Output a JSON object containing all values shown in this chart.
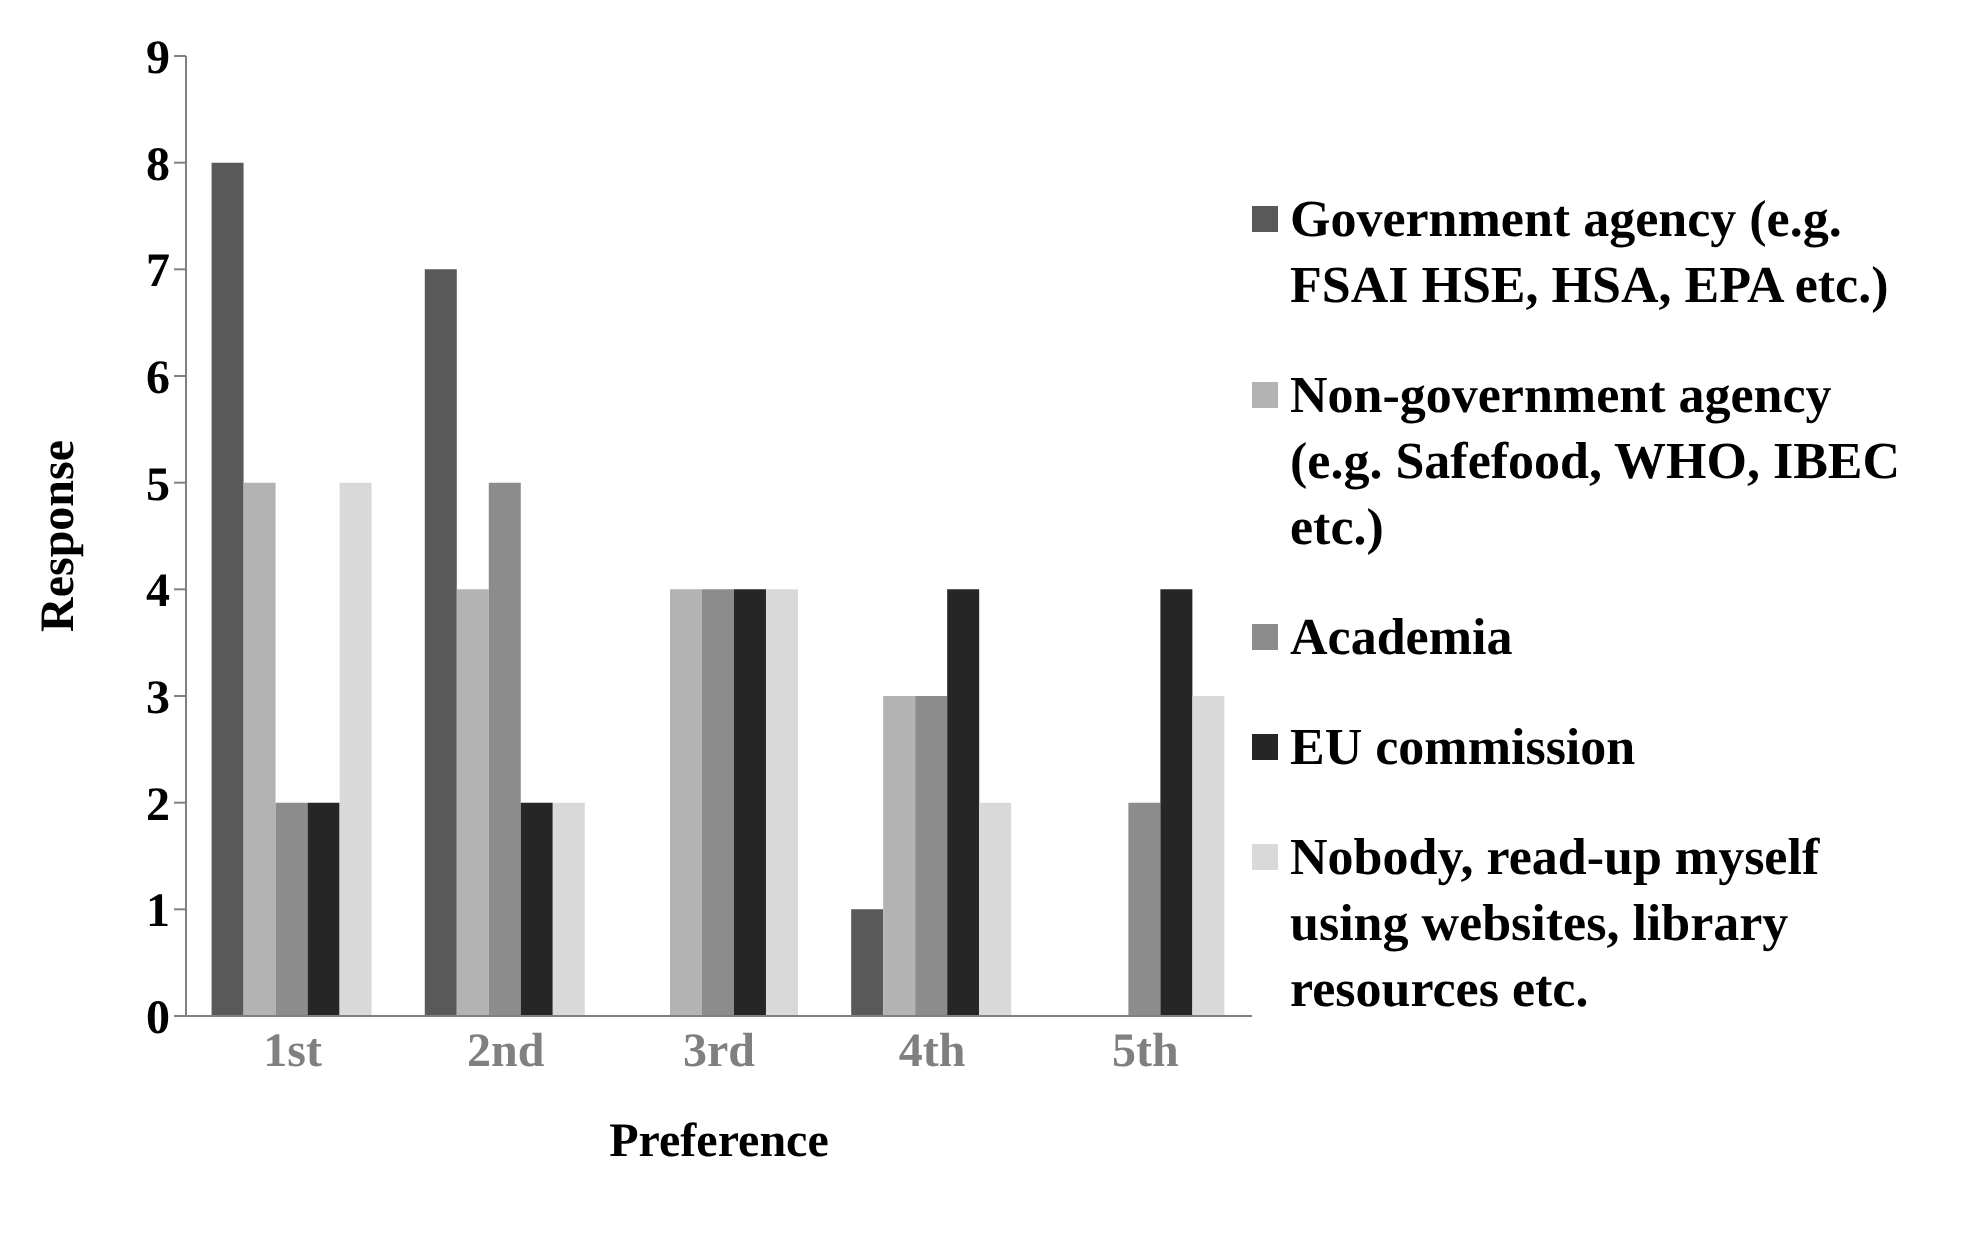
{
  "chart_data": {
    "type": "bar",
    "xlabel": "Preference",
    "ylabel": "Response",
    "categories": [
      "1st",
      "2nd",
      "3rd",
      "4th",
      "5th"
    ],
    "series": [
      {
        "name": "Government agency (e.g. FSAI HSE, HSA, EPA etc.)",
        "color": "#595959",
        "values": [
          8,
          7,
          0,
          1,
          0
        ]
      },
      {
        "name": "Non-government agency (e.g. Safefood, WHO, IBEC etc.)",
        "color": "#b3b3b3",
        "values": [
          5,
          4,
          4,
          3,
          0
        ]
      },
      {
        "name": "Academia",
        "color": "#8c8c8c",
        "values": [
          2,
          5,
          4,
          3,
          2
        ]
      },
      {
        "name": "EU commission",
        "color": "#262626",
        "values": [
          2,
          2,
          4,
          4,
          4
        ]
      },
      {
        "name": "Nobody, read-up myself using websites, library resources etc.",
        "color": "#d9d9d9",
        "values": [
          5,
          2,
          4,
          2,
          3
        ]
      }
    ],
    "ylim": [
      0,
      9
    ],
    "yticks": [
      0,
      1,
      2,
      3,
      4,
      5,
      6,
      7,
      8,
      9
    ],
    "grid": false,
    "legend": "right"
  }
}
